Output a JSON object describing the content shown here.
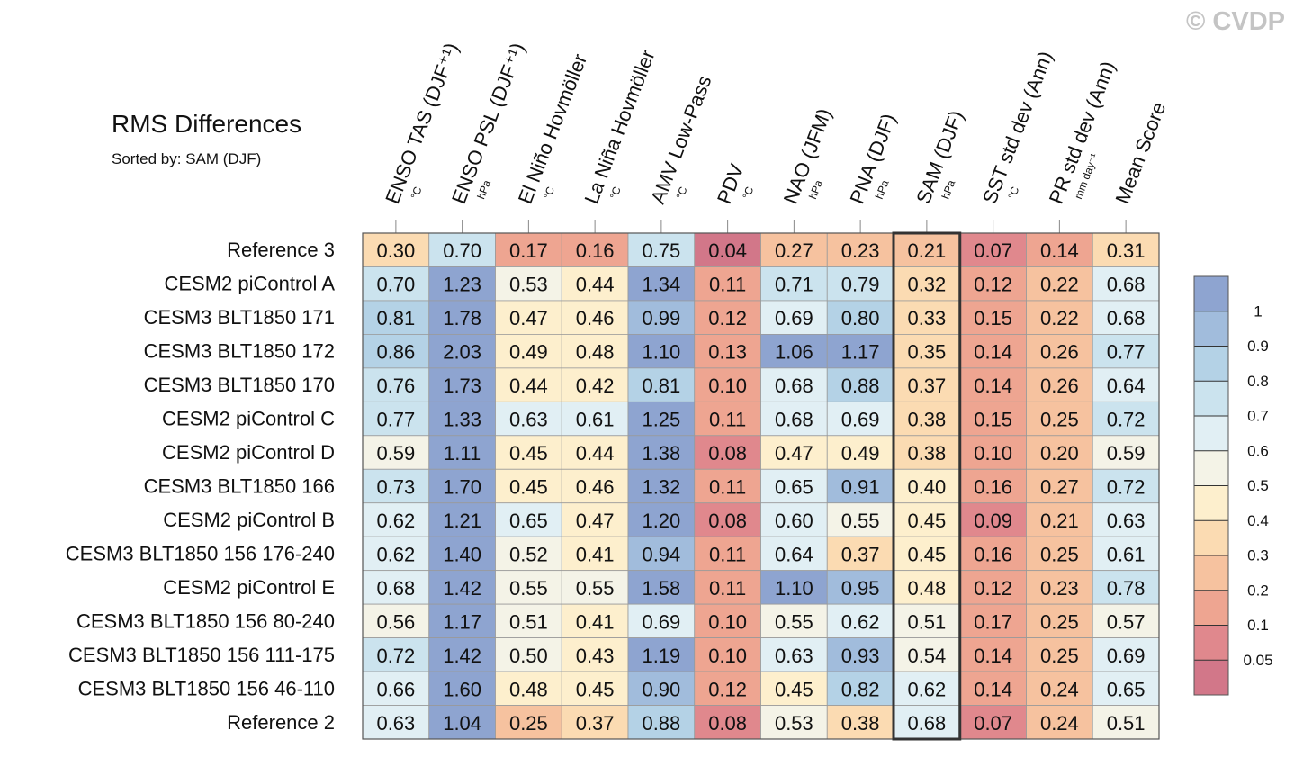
{
  "chart_data": {
    "type": "heatmap",
    "title": "RMS Differences",
    "subtitle": "Sorted by: SAM (DJF)",
    "watermark": "© CVDP",
    "highlight_column": 8,
    "columns": [
      {
        "name": "ENSO TAS (DJF⁺¹)",
        "unit": "°C"
      },
      {
        "name": "ENSO PSL (DJF⁺¹)",
        "unit": "hPa"
      },
      {
        "name": "El Niño Hovmöller",
        "unit": "°C"
      },
      {
        "name": "La Niña Hovmöller",
        "unit": "°C"
      },
      {
        "name": "AMV Low-Pass",
        "unit": "°C"
      },
      {
        "name": "PDV",
        "unit": "°C"
      },
      {
        "name": "NAO (JFM)",
        "unit": "hPa"
      },
      {
        "name": "PNA (DJF)",
        "unit": "hPa"
      },
      {
        "name": "SAM (DJF)",
        "unit": "hPa"
      },
      {
        "name": "SST std dev (Ann)",
        "unit": "°C"
      },
      {
        "name": "PR std dev (Ann)",
        "unit": "mm day⁻¹"
      },
      {
        "name": "Mean Score"
      }
    ],
    "rows": [
      "Reference 3",
      "CESM2 piControl A",
      "CESM3 BLT1850 171",
      "CESM3 BLT1850 172",
      "CESM3 BLT1850 170",
      "CESM2 piControl C",
      "CESM2 piControl D",
      "CESM3 BLT1850 166",
      "CESM2 piControl B",
      "CESM3 BLT1850 156 176-240",
      "CESM2 piControl E",
      "CESM3 BLT1850 156 80-240",
      "CESM3 BLT1850 156 111-175",
      "CESM3 BLT1850 156 46-110",
      "Reference 2"
    ],
    "values": [
      [
        0.3,
        0.7,
        0.17,
        0.16,
        0.75,
        0.04,
        0.27,
        0.23,
        0.21,
        0.07,
        0.14,
        0.31
      ],
      [
        0.7,
        1.23,
        0.53,
        0.44,
        1.34,
        0.11,
        0.71,
        0.79,
        0.32,
        0.12,
        0.22,
        0.68
      ],
      [
        0.81,
        1.78,
        0.47,
        0.46,
        0.99,
        0.12,
        0.69,
        0.8,
        0.33,
        0.15,
        0.22,
        0.68
      ],
      [
        0.86,
        2.03,
        0.49,
        0.48,
        1.1,
        0.13,
        1.06,
        1.17,
        0.35,
        0.14,
        0.26,
        0.77
      ],
      [
        0.76,
        1.73,
        0.44,
        0.42,
        0.81,
        0.1,
        0.68,
        0.88,
        0.37,
        0.14,
        0.26,
        0.64
      ],
      [
        0.77,
        1.33,
        0.63,
        0.61,
        1.25,
        0.11,
        0.68,
        0.69,
        0.38,
        0.15,
        0.25,
        0.72
      ],
      [
        0.59,
        1.11,
        0.45,
        0.44,
        1.38,
        0.08,
        0.47,
        0.49,
        0.38,
        0.1,
        0.2,
        0.59
      ],
      [
        0.73,
        1.7,
        0.45,
        0.46,
        1.32,
        0.11,
        0.65,
        0.91,
        0.4,
        0.16,
        0.27,
        0.72
      ],
      [
        0.62,
        1.21,
        0.65,
        0.47,
        1.2,
        0.08,
        0.6,
        0.55,
        0.45,
        0.09,
        0.21,
        0.63
      ],
      [
        0.62,
        1.4,
        0.52,
        0.41,
        0.94,
        0.11,
        0.64,
        0.37,
        0.45,
        0.16,
        0.25,
        0.61
      ],
      [
        0.68,
        1.42,
        0.55,
        0.55,
        1.58,
        0.11,
        1.1,
        0.95,
        0.48,
        0.12,
        0.23,
        0.78
      ],
      [
        0.56,
        1.17,
        0.51,
        0.41,
        0.69,
        0.1,
        0.55,
        0.62,
        0.51,
        0.17,
        0.25,
        0.57
      ],
      [
        0.72,
        1.42,
        0.5,
        0.43,
        1.19,
        0.1,
        0.63,
        0.93,
        0.54,
        0.14,
        0.25,
        0.69
      ],
      [
        0.66,
        1.6,
        0.48,
        0.45,
        0.9,
        0.12,
        0.45,
        0.82,
        0.62,
        0.14,
        0.24,
        0.65
      ],
      [
        0.63,
        1.04,
        0.25,
        0.37,
        0.88,
        0.08,
        0.53,
        0.38,
        0.68,
        0.07,
        0.24,
        0.51
      ]
    ],
    "value_labels": [
      [
        "0.30",
        "0.70",
        "0.17",
        "0.16",
        "0.75",
        "0.04",
        "0.27",
        "0.23",
        "0.21",
        "0.07",
        "0.14",
        "0.31"
      ],
      [
        "0.70",
        "1.23",
        "0.53",
        "0.44",
        "1.34",
        "0.11",
        "0.71",
        "0.79",
        "0.32",
        "0.12",
        "0.22",
        "0.68"
      ],
      [
        "0.81",
        "1.78",
        "0.47",
        "0.46",
        "0.99",
        "0.12",
        "0.69",
        "0.80",
        "0.33",
        "0.15",
        "0.22",
        "0.68"
      ],
      [
        "0.86",
        "2.03",
        "0.49",
        "0.48",
        "1.10",
        "0.13",
        "1.06",
        "1.17",
        "0.35",
        "0.14",
        "0.26",
        "0.77"
      ],
      [
        "0.76",
        "1.73",
        "0.44",
        "0.42",
        "0.81",
        "0.10",
        "0.68",
        "0.88",
        "0.37",
        "0.14",
        "0.26",
        "0.64"
      ],
      [
        "0.77",
        "1.33",
        "0.63",
        "0.61",
        "1.25",
        "0.11",
        "0.68",
        "0.69",
        "0.38",
        "0.15",
        "0.25",
        "0.72"
      ],
      [
        "0.59",
        "1.11",
        "0.45",
        "0.44",
        "1.38",
        "0.08",
        "0.47",
        "0.49",
        "0.38",
        "0.10",
        "0.20",
        "0.59"
      ],
      [
        "0.73",
        "1.70",
        "0.45",
        "0.46",
        "1.32",
        "0.11",
        "0.65",
        "0.91",
        "0.40",
        "0.16",
        "0.27",
        "0.72"
      ],
      [
        "0.62",
        "1.21",
        "0.65",
        "0.47",
        "1.20",
        "0.08",
        "0.60",
        "0.55",
        "0.45",
        "0.09",
        "0.21",
        "0.63"
      ],
      [
        "0.62",
        "1.40",
        "0.52",
        "0.41",
        "0.94",
        "0.11",
        "0.64",
        "0.37",
        "0.45",
        "0.16",
        "0.25",
        "0.61"
      ],
      [
        "0.68",
        "1.42",
        "0.55",
        "0.55",
        "1.58",
        "0.11",
        "1.10",
        "0.95",
        "0.48",
        "0.12",
        "0.23",
        "0.78"
      ],
      [
        "0.56",
        "1.17",
        "0.51",
        "0.41",
        "0.69",
        "0.10",
        "0.55",
        "0.62",
        "0.51",
        "0.17",
        "0.25",
        "0.57"
      ],
      [
        "0.72",
        "1.42",
        "0.50",
        "0.43",
        "1.19",
        "0.10",
        "0.63",
        "0.93",
        "0.54",
        "0.14",
        "0.25",
        "0.69"
      ],
      [
        "0.66",
        "1.60",
        "0.48",
        "0.45",
        "0.90",
        "0.12",
        "0.45",
        "0.82",
        "0.62",
        "0.14",
        "0.24",
        "0.65"
      ],
      [
        "0.63",
        "1.04",
        "0.25",
        "0.37",
        "0.88",
        "0.08",
        "0.53",
        "0.38",
        "0.68",
        "0.07",
        "0.24",
        "0.51"
      ]
    ],
    "colorbar": {
      "levels": [
        0.05,
        0.1,
        0.2,
        0.3,
        0.4,
        0.5,
        0.6,
        0.7,
        0.8,
        0.9,
        1
      ],
      "colors": [
        "#d27789",
        "#e0888d",
        "#eea591",
        "#f6c29f",
        "#fbdbb2",
        "#fdefcd",
        "#f4f3e7",
        "#e1eff4",
        "#cbe3ee",
        "#b4d2e6",
        "#a1bcdc",
        "#8ea4d0"
      ]
    }
  }
}
